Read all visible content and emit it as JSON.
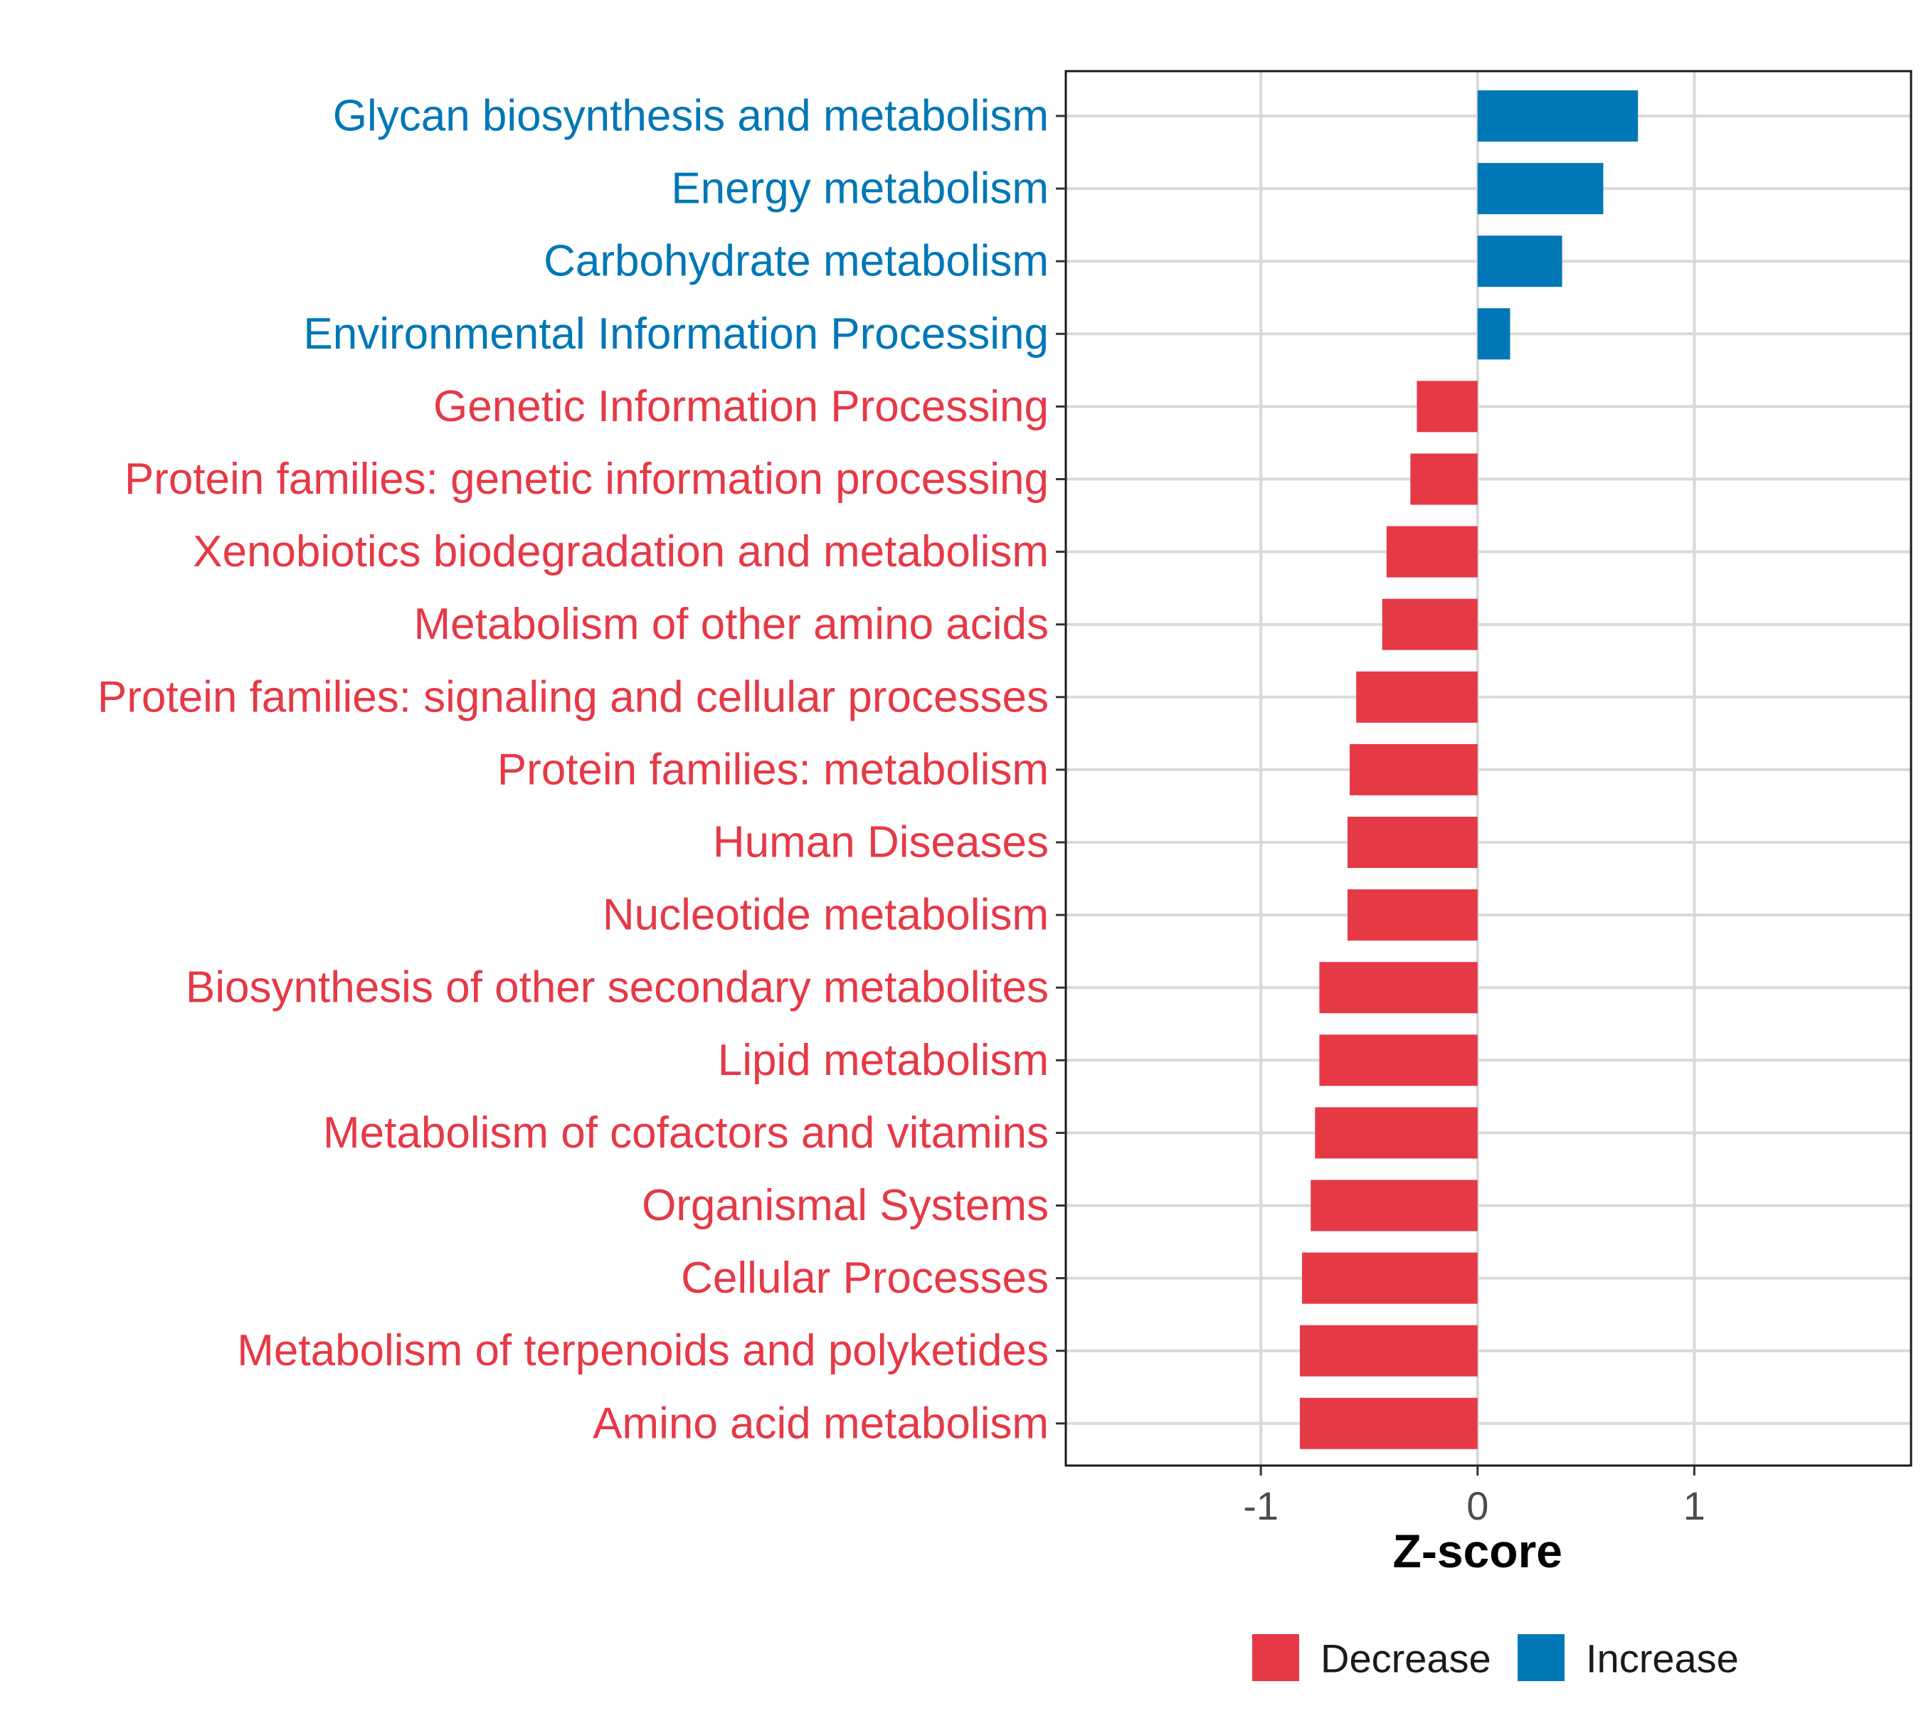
{
  "chart_data": {
    "type": "bar",
    "orientation": "horizontal",
    "xlabel": "Z-score",
    "ylabel": "",
    "xlim": [
      -1.9,
      2.0
    ],
    "xticks": [
      -1,
      0,
      1
    ],
    "xtick_labels": [
      "-1",
      "0",
      "1"
    ],
    "grid": true,
    "legend_position": "bottom",
    "colors": {
      "Decrease": "#e63946",
      "Increase": "#0077b6"
    },
    "legend": [
      {
        "label": "Decrease",
        "color": "#e63946"
      },
      {
        "label": "Increase",
        "color": "#0077b6"
      }
    ],
    "categories": [
      "Glycan biosynthesis and metabolism",
      "Energy metabolism",
      "Carbohydrate metabolism",
      "Environmental Information Processing",
      "Genetic Information Processing",
      "Protein families: genetic information processing",
      "Xenobiotics biodegradation and metabolism",
      "Metabolism of other amino acids",
      "Protein families: signaling and cellular processes",
      "Protein families: metabolism",
      "Human Diseases",
      "Nucleotide metabolism",
      "Biosynthesis of other secondary metabolites",
      "Lipid metabolism",
      "Metabolism of cofactors and vitamins",
      "Organismal Systems",
      "Cellular Processes",
      "Metabolism of terpenoids and polyketides",
      "Amino acid metabolism"
    ],
    "values": [
      0.74,
      0.58,
      0.39,
      0.15,
      -0.28,
      -0.31,
      -0.42,
      -0.44,
      -0.56,
      -0.59,
      -0.6,
      -0.6,
      -0.73,
      -0.73,
      -0.75,
      -0.77,
      -0.81,
      -0.82,
      -0.82
    ],
    "groups": [
      "Increase",
      "Increase",
      "Increase",
      "Increase",
      "Decrease",
      "Decrease",
      "Decrease",
      "Decrease",
      "Decrease",
      "Decrease",
      "Decrease",
      "Decrease",
      "Decrease",
      "Decrease",
      "Decrease",
      "Decrease",
      "Decrease",
      "Decrease",
      "Decrease"
    ]
  }
}
